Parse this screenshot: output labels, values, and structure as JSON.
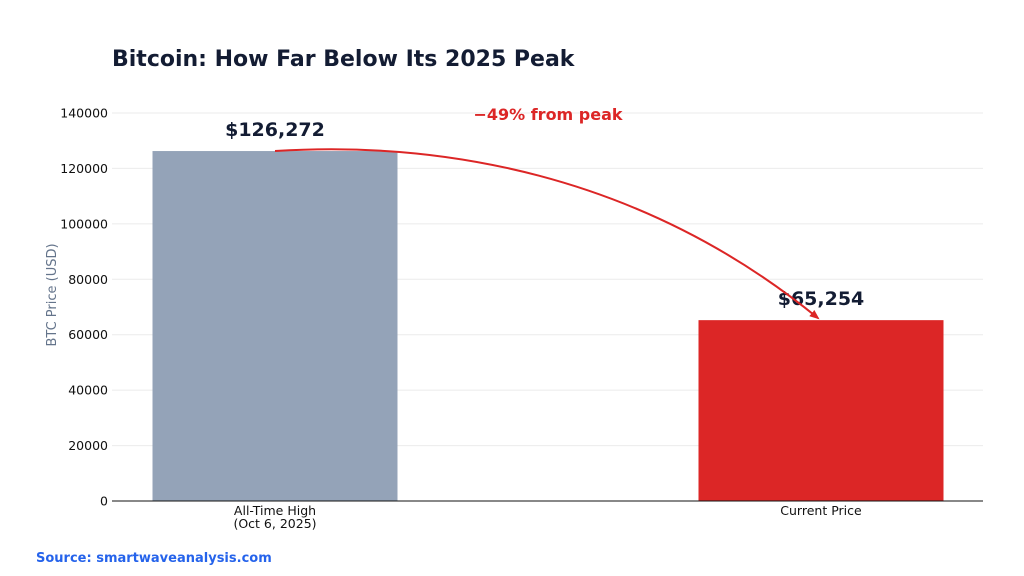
{
  "chart_data": {
    "type": "bar",
    "title": "Bitcoin: How Far Below Its 2025 Peak",
    "ylabel": "BTC Price (USD)",
    "xlabel": "",
    "categories": [
      [
        "All-Time High",
        "(Oct 6, 2025)"
      ],
      [
        "Current Price"
      ]
    ],
    "values": [
      126272,
      65254
    ],
    "value_labels": [
      "$126,272",
      "$65,254"
    ],
    "bar_colors": [
      "#94a3b8",
      "#dc2626"
    ],
    "ylim": [
      0,
      140000
    ],
    "yticks": [
      0,
      20000,
      40000,
      60000,
      80000,
      100000,
      120000,
      140000
    ],
    "grid": true,
    "annotation": {
      "text": "−49% from peak",
      "color": "#dc2626",
      "from_category": 0,
      "to_category": 1
    }
  },
  "source": "Source: smartwaveanalysis.com"
}
